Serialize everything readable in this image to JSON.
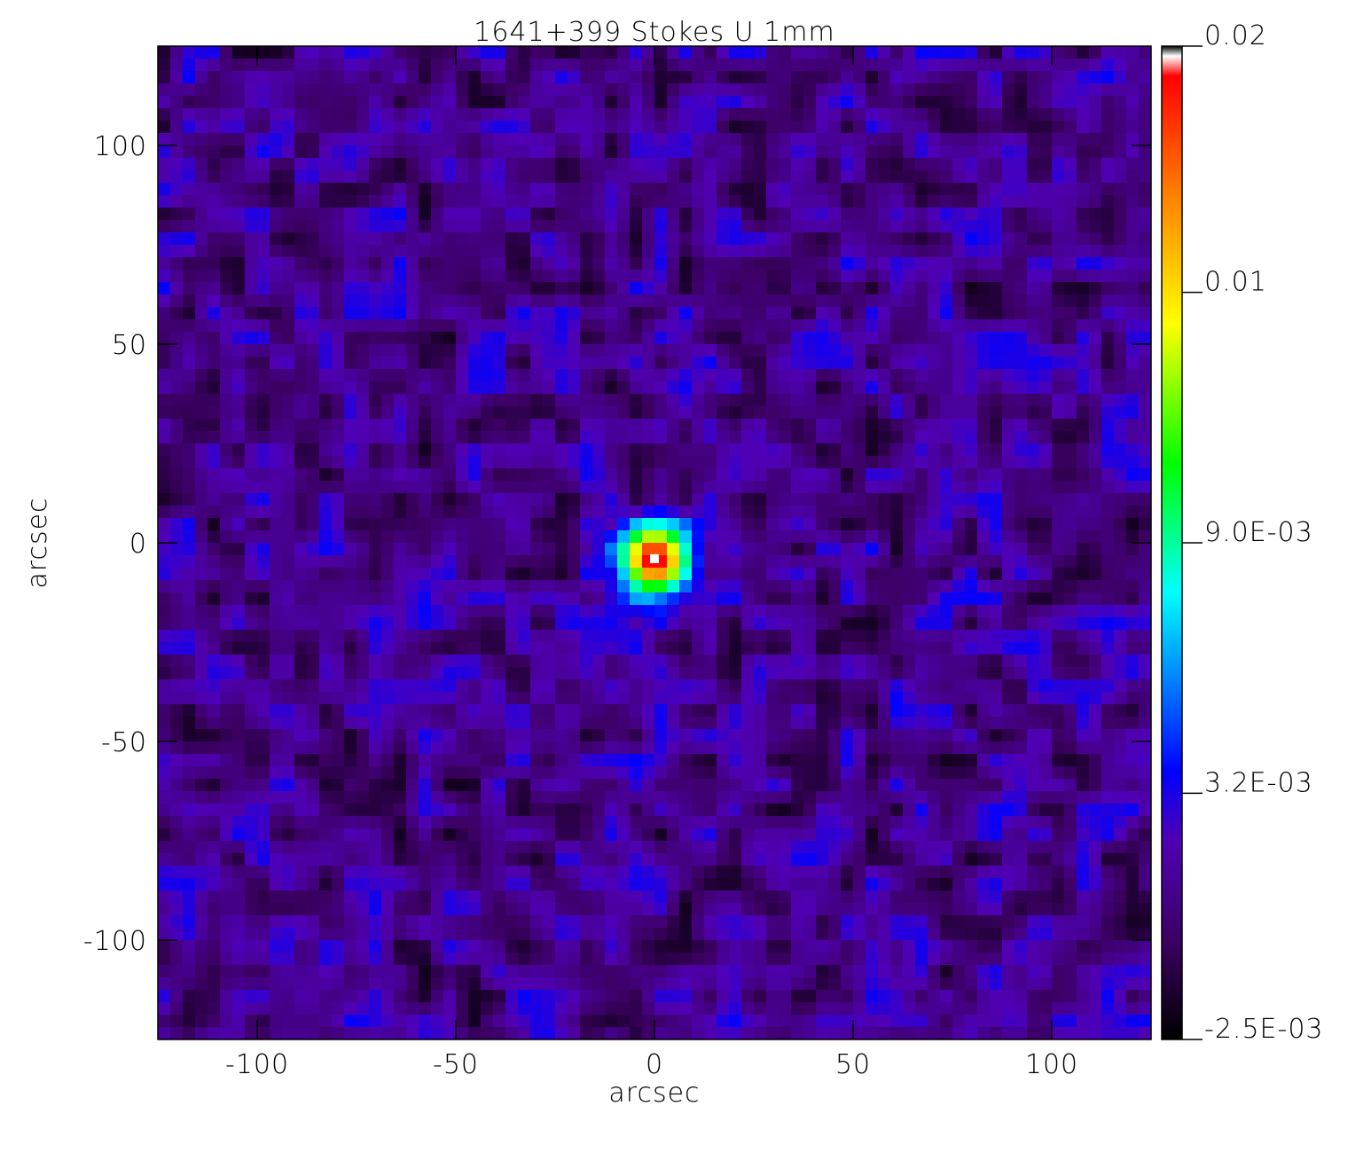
{
  "chart_data": {
    "type": "heatmap",
    "title": "1641+399 Stokes U 1mm",
    "xlabel": "arcsec",
    "ylabel": "arcsec",
    "xlim": [
      -125,
      125
    ],
    "ylim": [
      -125,
      125
    ],
    "xticks": [
      -100,
      -50,
      0,
      50,
      100
    ],
    "yticks": [
      -100,
      -50,
      0,
      50,
      100
    ],
    "clim": [
      -0.0025,
      0.0205
    ],
    "cticks": [
      {
        "value": -0.0025,
        "label": "-2.5E-03"
      },
      {
        "value": 0.0032,
        "label": "3.2E-03"
      },
      {
        "value": 0.009,
        "label": "9.0E-03"
      },
      {
        "value": 0.0148,
        "label": "0.01"
      },
      {
        "value": 0.0205,
        "label": "0.02"
      }
    ],
    "peak": {
      "x": 0,
      "y": -4,
      "value": 0.0205
    }
  }
}
